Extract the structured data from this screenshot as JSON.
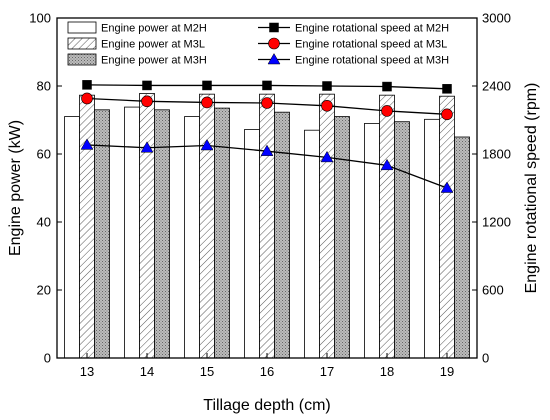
{
  "chart_data": {
    "type": "bar",
    "xlabel": "Tillage depth (cm)",
    "ylabel": "Engine power (kW)",
    "y2label": "Engine rotational speed (rpm)",
    "categories": [
      "13",
      "14",
      "15",
      "16",
      "17",
      "18",
      "19"
    ],
    "ylim": [
      0,
      100
    ],
    "yticks": [
      0,
      20,
      40,
      60,
      80,
      100
    ],
    "y2lim": [
      0,
      3000
    ],
    "y2ticks": [
      0,
      600,
      1200,
      1800,
      2400,
      3000
    ],
    "grid": false,
    "legend_placement": "top",
    "bar_series": [
      {
        "name": "Engine power at M2H",
        "pattern": "white",
        "values": [
          71.0,
          73.8,
          71.0,
          67.2,
          67.0,
          69.0,
          70.2
        ]
      },
      {
        "name": "Engine power at M3L",
        "pattern": "hatched",
        "values": [
          77.3,
          77.8,
          77.6,
          77.6,
          77.6,
          77.3,
          77.0
        ]
      },
      {
        "name": "Engine power at M3H",
        "pattern": "dotted-gray",
        "values": [
          73.0,
          73.0,
          73.5,
          72.3,
          71.0,
          69.5,
          65.0
        ]
      }
    ],
    "line_series": [
      {
        "name": "Engine rotational speed at M2H",
        "marker": "square",
        "color": "#000000",
        "values": [
          2410,
          2405,
          2405,
          2405,
          2400,
          2395,
          2375
        ]
      },
      {
        "name": "Engine rotational speed at M3L",
        "marker": "circle",
        "color": "#ff0000",
        "values": [
          2290,
          2265,
          2255,
          2250,
          2225,
          2180,
          2150
        ]
      },
      {
        "name": "Engine rotational speed at M3H",
        "marker": "triangle",
        "color": "#0000ff",
        "values": [
          1880,
          1855,
          1875,
          1825,
          1770,
          1700,
          1500
        ]
      }
    ]
  }
}
